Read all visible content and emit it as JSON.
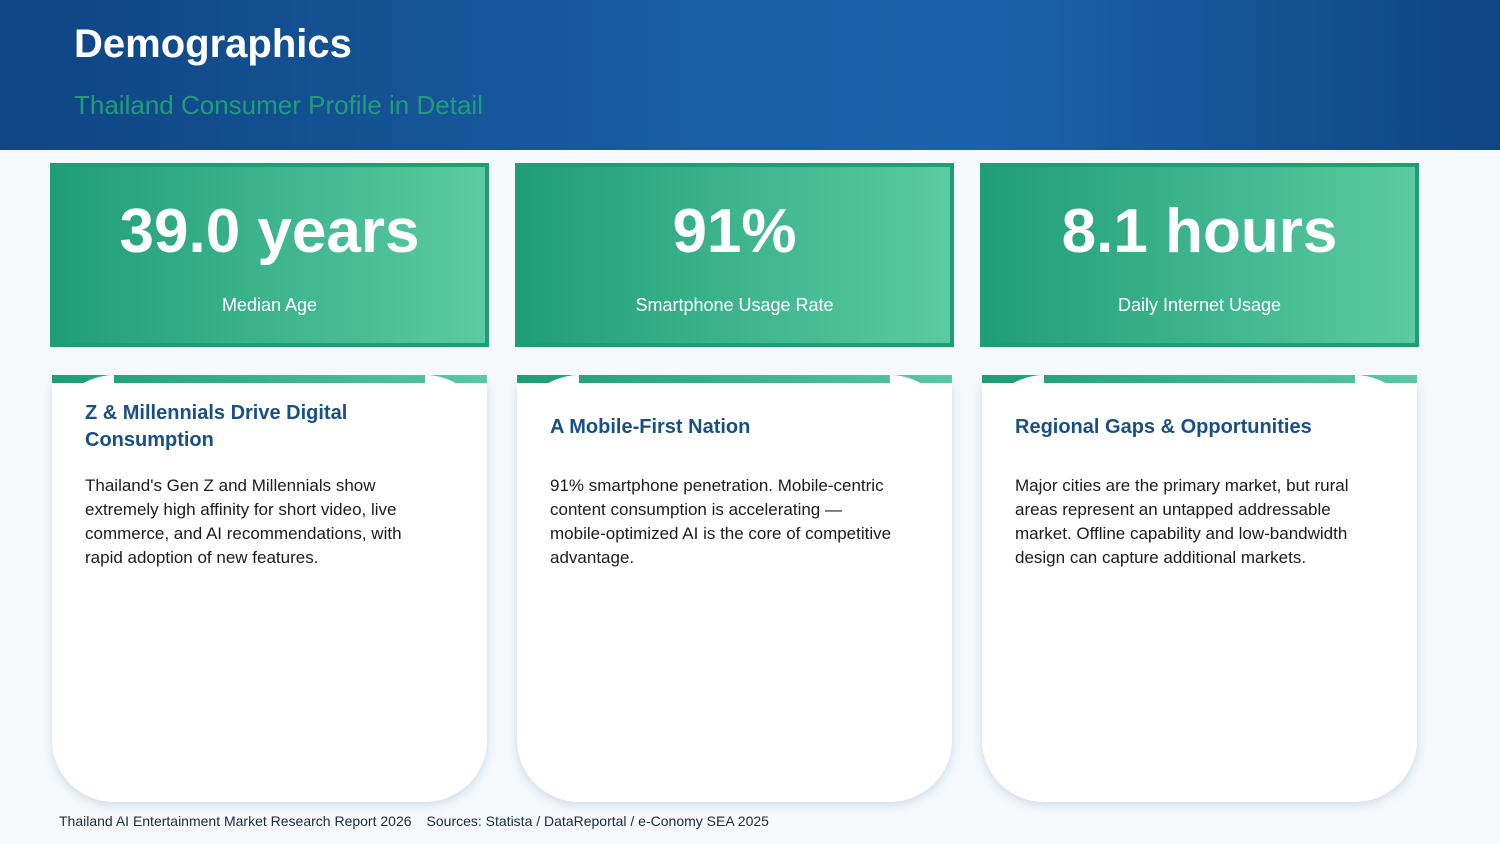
{
  "header": {
    "title": "Demographics",
    "subtitle": "Thailand Consumer Profile in Detail"
  },
  "stats": [
    {
      "value": "39.0 years",
      "label": "Median Age"
    },
    {
      "value": "91%",
      "label": "Smartphone Usage Rate"
    },
    {
      "value": "8.1 hours",
      "label": "Daily Internet Usage"
    }
  ],
  "cards": [
    {
      "title": "Z & Millennials Drive Digital Consumption",
      "body": "Thailand's Gen Z and Millennials show extremely high affinity for short video, live commerce, and AI recommendations, with rapid adoption of new features."
    },
    {
      "title": "A Mobile-First Nation",
      "body": "91% smartphone penetration. Mobile-centric content consumption is accelerating — mobile-optimized AI is the core of competitive advantage."
    },
    {
      "title": "Regional Gaps & Opportunities",
      "body": "Major cities are the primary market, but rural areas represent an untapped addressable market. Offline capability and low-bandwidth design can capture additional markets."
    }
  ],
  "footer": {
    "report": "Thailand AI Entertainment Market Research Report 2026",
    "sources": "Sources: Statista / DataReportal / e-Conomy SEA 2025"
  },
  "colors": {
    "header_dark": "#0f4583",
    "header_light": "#1c62aa",
    "accent_green": "#1f9e76",
    "accent_green_light": "#5ccaa2",
    "card_title": "#1a4f86"
  }
}
